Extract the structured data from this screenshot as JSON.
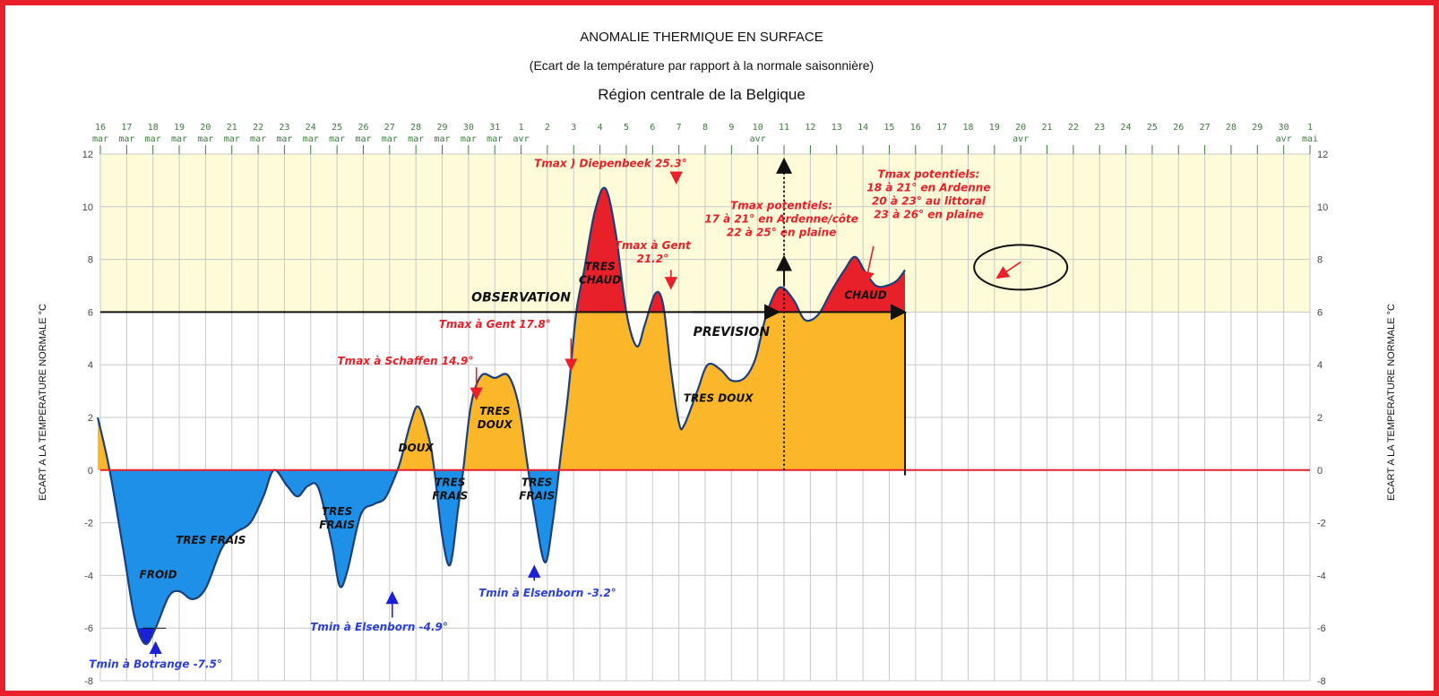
{
  "chart_data": {
    "type": "area",
    "title": "ANOMALIE THERMIQUE EN SURFACE",
    "subtitle": "(Ecart de la température par rapport à la normale saisonnière)",
    "region": "Région centrale de la Belgique",
    "ylabel": "ECART A LA TEMPERATURE NORMALE °C",
    "ylim": [
      -8,
      12
    ],
    "yticks": [
      -8,
      -6,
      -4,
      -2,
      0,
      2,
      4,
      6,
      8,
      10,
      12
    ],
    "grid": true,
    "x_ticks": [
      {
        "day": "16",
        "month": "mar"
      },
      {
        "day": "17",
        "month": "mar"
      },
      {
        "day": "18",
        "month": "mar"
      },
      {
        "day": "19",
        "month": "mar"
      },
      {
        "day": "20",
        "month": "mar"
      },
      {
        "day": "21",
        "month": "mar"
      },
      {
        "day": "22",
        "month": "mar"
      },
      {
        "day": "23",
        "month": "mar"
      },
      {
        "day": "24",
        "month": "mar"
      },
      {
        "day": "25",
        "month": "mar"
      },
      {
        "day": "26",
        "month": "mar"
      },
      {
        "day": "27",
        "month": "mar"
      },
      {
        "day": "28",
        "month": "mar"
      },
      {
        "day": "29",
        "month": "mar"
      },
      {
        "day": "30",
        "month": "mar"
      },
      {
        "day": "31",
        "month": "mar"
      },
      {
        "day": "1",
        "month": "avr"
      },
      {
        "day": "2",
        "month": ""
      },
      {
        "day": "3",
        "month": ""
      },
      {
        "day": "4",
        "month": ""
      },
      {
        "day": "5",
        "month": ""
      },
      {
        "day": "6",
        "month": ""
      },
      {
        "day": "7",
        "month": ""
      },
      {
        "day": "8",
        "month": ""
      },
      {
        "day": "9",
        "month": ""
      },
      {
        "day": "10",
        "month": "avr"
      },
      {
        "day": "11",
        "month": ""
      },
      {
        "day": "12",
        "month": ""
      },
      {
        "day": "13",
        "month": ""
      },
      {
        "day": "14",
        "month": ""
      },
      {
        "day": "15",
        "month": ""
      },
      {
        "day": "16",
        "month": ""
      },
      {
        "day": "17",
        "month": ""
      },
      {
        "day": "18",
        "month": ""
      },
      {
        "day": "19",
        "month": ""
      },
      {
        "day": "20",
        "month": "avr"
      },
      {
        "day": "21",
        "month": ""
      },
      {
        "day": "22",
        "month": ""
      },
      {
        "day": "23",
        "month": ""
      },
      {
        "day": "24",
        "month": ""
      },
      {
        "day": "25",
        "month": ""
      },
      {
        "day": "26",
        "month": ""
      },
      {
        "day": "27",
        "month": ""
      },
      {
        "day": "28",
        "month": ""
      },
      {
        "day": "29",
        "month": ""
      },
      {
        "day": "30",
        "month": "avr"
      },
      {
        "day": "1",
        "month": "mai"
      }
    ],
    "series": [
      {
        "points": [
          [
            -0.1,
            2.0
          ],
          [
            0.35,
            0.0
          ],
          [
            0.9,
            -3.2
          ],
          [
            1.3,
            -5.6
          ],
          [
            1.7,
            -6.6
          ],
          [
            2.1,
            -6.0
          ],
          [
            2.6,
            -4.8
          ],
          [
            3.0,
            -4.6
          ],
          [
            3.5,
            -4.9
          ],
          [
            4.0,
            -4.5
          ],
          [
            4.6,
            -3.0
          ],
          [
            5.1,
            -2.4
          ],
          [
            5.7,
            -2.0
          ],
          [
            6.2,
            -1.0
          ],
          [
            6.6,
            0.0
          ],
          [
            7.1,
            -0.6
          ],
          [
            7.5,
            -1.0
          ],
          [
            7.9,
            -0.6
          ],
          [
            8.3,
            -0.7
          ],
          [
            8.8,
            -2.8
          ],
          [
            9.1,
            -4.4
          ],
          [
            9.4,
            -3.8
          ],
          [
            9.9,
            -1.7
          ],
          [
            10.4,
            -1.3
          ],
          [
            10.8,
            -1.1
          ],
          [
            11.1,
            -0.5
          ],
          [
            11.4,
            0.3
          ],
          [
            11.8,
            1.8
          ],
          [
            12.1,
            2.4
          ],
          [
            12.5,
            1.2
          ],
          [
            12.7,
            0.0
          ],
          [
            13.0,
            -2.5
          ],
          [
            13.3,
            -3.6
          ],
          [
            13.6,
            -1.5
          ],
          [
            13.8,
            0.0
          ],
          [
            14.1,
            2.5
          ],
          [
            14.5,
            3.6
          ],
          [
            15.0,
            3.5
          ],
          [
            15.5,
            3.6
          ],
          [
            15.9,
            2.5
          ],
          [
            16.2,
            0.5
          ],
          [
            16.5,
            -1.5
          ],
          [
            16.9,
            -3.5
          ],
          [
            17.2,
            -2.0
          ],
          [
            17.5,
            0.5
          ],
          [
            17.8,
            3.0
          ],
          [
            18.1,
            6.0
          ],
          [
            18.4,
            7.6
          ],
          [
            18.8,
            9.8
          ],
          [
            19.2,
            10.7
          ],
          [
            19.6,
            9.0
          ],
          [
            20.0,
            6.0
          ],
          [
            20.4,
            4.7
          ],
          [
            20.7,
            5.5
          ],
          [
            21.1,
            6.7
          ],
          [
            21.4,
            6.3
          ],
          [
            21.7,
            3.8
          ],
          [
            22.0,
            1.8
          ],
          [
            22.2,
            1.7
          ],
          [
            22.7,
            3.0
          ],
          [
            23.1,
            4.0
          ],
          [
            23.6,
            3.8
          ],
          [
            24.0,
            3.4
          ],
          [
            24.5,
            3.5
          ],
          [
            24.9,
            4.2
          ],
          [
            25.3,
            5.8
          ],
          [
            25.7,
            6.8
          ],
          [
            26.0,
            6.9
          ],
          [
            26.4,
            6.4
          ],
          [
            26.8,
            5.7
          ],
          [
            27.3,
            5.9
          ],
          [
            27.8,
            6.8
          ],
          [
            28.3,
            7.6
          ],
          [
            28.7,
            8.1
          ],
          [
            29.1,
            7.5
          ],
          [
            29.5,
            7.0
          ],
          [
            29.9,
            7.0
          ],
          [
            30.3,
            7.2
          ],
          [
            30.6,
            7.6
          ]
        ]
      }
    ],
    "zero_line_extends_to": 46,
    "observation_end": 26.0,
    "categories": [
      "TRES FRAIS",
      "FROID",
      "TRES FRAIS",
      "TRES FRAIS",
      "TRES FRAIS",
      "DOUX",
      "TRES DOUX",
      "TRES CHAUD",
      "TRES DOUX",
      "CHAUD"
    ],
    "annotations": [
      {
        "id": "froid",
        "text": "FROID",
        "x": 2.2,
        "y": -4.1,
        "color": "#111111"
      },
      {
        "id": "tres_frais_1",
        "text": "TRES FRAIS",
        "x": 4.2,
        "y": -2.8,
        "color": "#111111"
      },
      {
        "id": "tres_frais_2",
        "lines": [
          "TRES",
          "FRAIS"
        ],
        "x": 9.0,
        "y": -1.7,
        "color": "#111111"
      },
      {
        "id": "doux",
        "text": "DOUX",
        "x": 12.0,
        "y": 0.7,
        "color": "#111111"
      },
      {
        "id": "tres_frais_3",
        "lines": [
          "TRES",
          "FRAIS"
        ],
        "x": 13.3,
        "y": -0.6,
        "color": "#111111"
      },
      {
        "id": "tres_doux_1",
        "lines": [
          "TRES",
          "DOUX"
        ],
        "x": 15.0,
        "y": 2.1,
        "color": "#111111"
      },
      {
        "id": "tres_frais_4",
        "lines": [
          "TRES",
          "FRAIS"
        ],
        "x": 16.6,
        "y": -0.6,
        "color": "#111111"
      },
      {
        "id": "tres_chaud",
        "lines": [
          "TRES",
          "CHAUD"
        ],
        "x": 19.0,
        "y": 7.6,
        "color": "#111111"
      },
      {
        "id": "tres_doux_2",
        "text": "TRES DOUX",
        "x": 23.5,
        "y": 2.6,
        "color": "#111111"
      },
      {
        "id": "chaud",
        "text": "CHAUD",
        "x": 29.1,
        "y": 6.5,
        "color": "#111111"
      },
      {
        "id": "observation",
        "text": "OBSERVATION",
        "x": 16.0,
        "y": 6.4,
        "color": "#111111"
      },
      {
        "id": "prevision",
        "text": "PREVISION",
        "x": 24.0,
        "y": 5.1,
        "color": "#111111"
      },
      {
        "id": "tmin_botrange",
        "text": "Tmin à Botrange -7.5°",
        "x": 2.1,
        "y": -7.5,
        "color": "#2b3fd6"
      },
      {
        "id": "tmin_elsenborn_1",
        "text": "Tmin à Elsenborn -4.9°",
        "x": 10.6,
        "y": -6.1,
        "color": "#2b3fd6"
      },
      {
        "id": "tmin_elsenborn_2",
        "text": "Tmin à Elsenborn -3.2°",
        "x": 17.0,
        "y": -4.8,
        "color": "#2b3fd6"
      },
      {
        "id": "tmax_schaffen",
        "text": "Tmax à Schaffen 14.9°",
        "x": 11.6,
        "y": 4.0,
        "color": "#e8202a"
      },
      {
        "id": "tmax_gent_1",
        "text": "Tmax à Gent 17.8°",
        "x": 15.0,
        "y": 5.4,
        "color": "#e8202a"
      },
      {
        "id": "tmax_diepenbeek",
        "text": "Tmax ) Diepenbeek 25.3°",
        "x": 19.4,
        "y": 11.5,
        "color": "#e8202a"
      },
      {
        "id": "tmax_gent_2",
        "lines": [
          "Tmax à Gent",
          "21.2°"
        ],
        "x": 21.0,
        "y": 8.4,
        "color": "#e8202a"
      },
      {
        "id": "tmax_pot_1",
        "lines": [
          "Tmax potentiels:",
          "17 à 21° en Ardenne/côte",
          "22 à 25° en plaine"
        ],
        "x": 25.9,
        "y": 9.9,
        "color": "#e8202a"
      },
      {
        "id": "tmax_pot_2",
        "lines": [
          "Tmax potentiels:",
          "18 à 21° en Ardenne",
          "20 à 23° au littoral",
          "23 à 26° en plaine"
        ],
        "x": 31.5,
        "y": 11.1,
        "color": "#e8202a"
      }
    ],
    "colors": {
      "cold_fill": "#1e90e8",
      "warm_fill": "#fbb729",
      "hot_fill": "#e8202a",
      "very_cold_fill": "#1a20d8",
      "curve": "#1a3f7a",
      "zero_line": "#e8202a",
      "plot_background": "#fdfbd8",
      "grid": "#c8c8c8",
      "frame": "#e8202a",
      "warm_label": "#e8202a",
      "cold_label": "#2b3fd6"
    }
  }
}
